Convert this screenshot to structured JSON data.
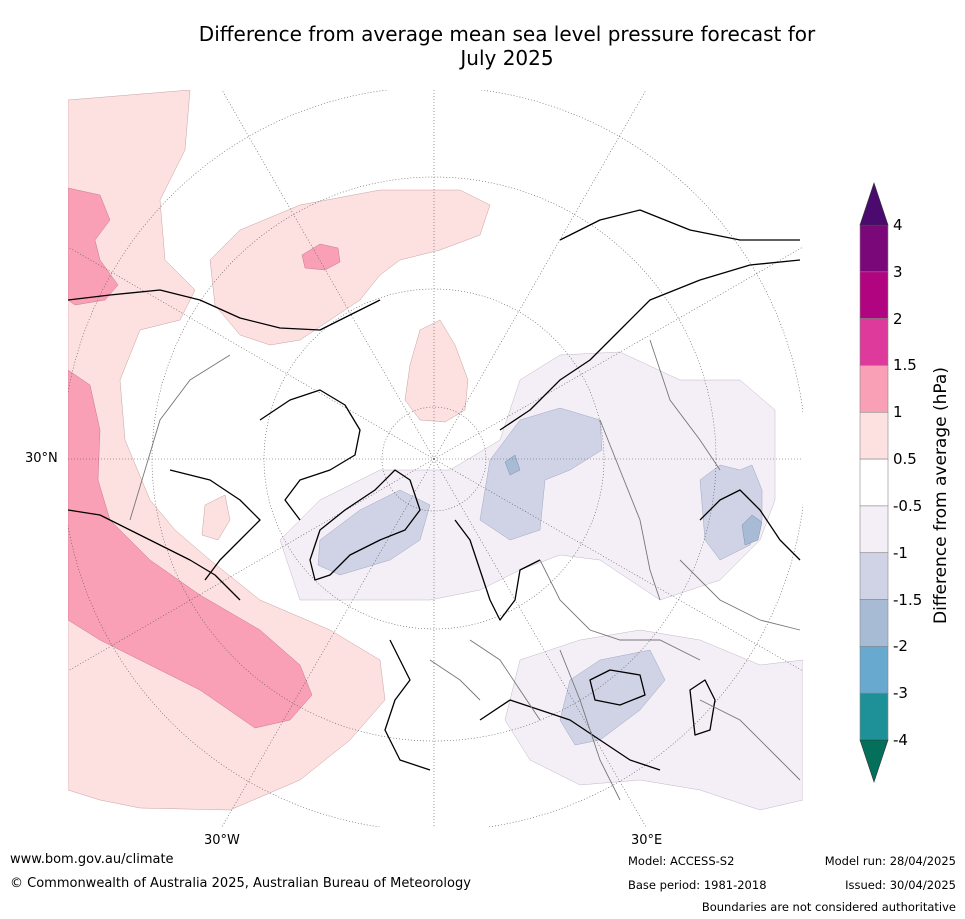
{
  "title": {
    "line1": "Difference from average mean sea level pressure forecast for",
    "line2": "July 2025"
  },
  "map": {
    "lat_label": "30°N",
    "lon_labels": [
      "30°W",
      "30°E"
    ]
  },
  "colorbar": {
    "label": "Difference from average (hPa)",
    "ticks": [
      "4",
      "3",
      "2",
      "1.5",
      "1",
      "0.5",
      "-0.5",
      "-1",
      "-1.5",
      "-2",
      "-3",
      "-4"
    ],
    "colors": [
      "#7b0878",
      "#b10480",
      "#de3a9c",
      "#f99fb6",
      "#fde0e0",
      "#ffffff",
      "#f4eef6",
      "#d0d2e6",
      "#a8bbd5",
      "#67a9cf",
      "#1e9198"
    ],
    "over_color": "#4a0a6e",
    "under_color": "#04705c"
  },
  "footer": {
    "website": "www.bom.gov.au/climate",
    "copyright": "© Commonwealth of Australia 2025, Australian Bureau of Meteorology",
    "model": "Model: ACCESS-S2",
    "base_period": "Base period: 1981-2018",
    "model_run": "Model run: 28/04/2025",
    "issued": "Issued: 30/04/2025",
    "disclaimer": "Boundaries are not considered authoritative"
  }
}
